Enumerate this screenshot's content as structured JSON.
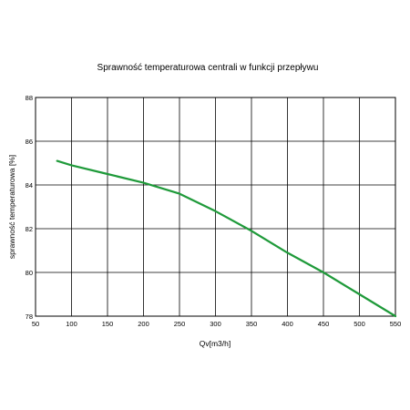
{
  "chart_data": {
    "type": "line",
    "title": "Sprawność temperaturowa centrali w funkcji przepływu",
    "xlabel": "Qv[m3/h]",
    "ylabel": "sprawność temperaturowa [%]",
    "xlim": [
      50,
      550
    ],
    "ylim": [
      78,
      88
    ],
    "xticks": [
      50,
      100,
      150,
      200,
      250,
      300,
      350,
      400,
      450,
      500,
      550
    ],
    "yticks": [
      78,
      80,
      82,
      84,
      86,
      88
    ],
    "grid": true,
    "legend": "none",
    "series": [
      {
        "color": "#1f9a3a",
        "x": [
          80,
          100,
          150,
          200,
          250,
          300,
          350,
          400,
          450,
          500,
          550
        ],
        "y": [
          85.1,
          84.9,
          84.5,
          84.1,
          83.6,
          82.8,
          81.9,
          80.9,
          80.0,
          79.0,
          78.0
        ]
      }
    ],
    "colors": {
      "line": "#1f9a3a",
      "grid": "#000000",
      "frame": "#000000"
    }
  }
}
